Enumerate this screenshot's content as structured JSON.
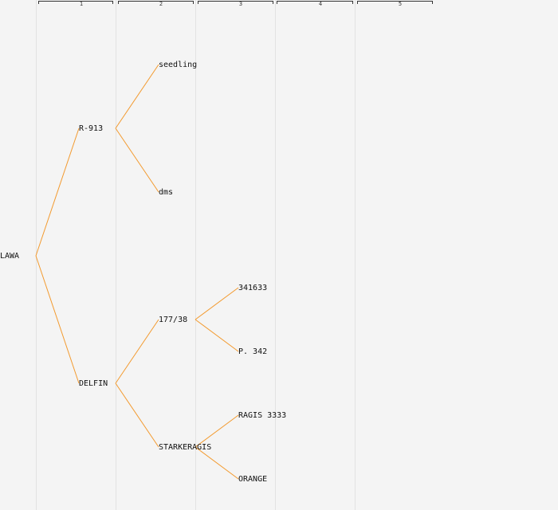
{
  "generations": [
    "1",
    "2",
    "3",
    "4",
    "5"
  ],
  "colors": {
    "link": "#f39a2e",
    "background": "#f4f4f4",
    "grid": "#e2e2e2"
  },
  "tree": {
    "root": "LAWA",
    "parents": {
      "sire": "R-913",
      "dam": "DELFIN"
    },
    "r913_parents": {
      "sire": "seedling",
      "dam": "dms"
    },
    "delfin_parents": {
      "sire": "177/38",
      "dam": "STARKERAGIS"
    },
    "p17738_parents": {
      "sire": "341633",
      "dam": "P. 342"
    },
    "starkeragis_parents": {
      "sire": "RAGIS 3333",
      "dam": "ORANGE"
    }
  }
}
